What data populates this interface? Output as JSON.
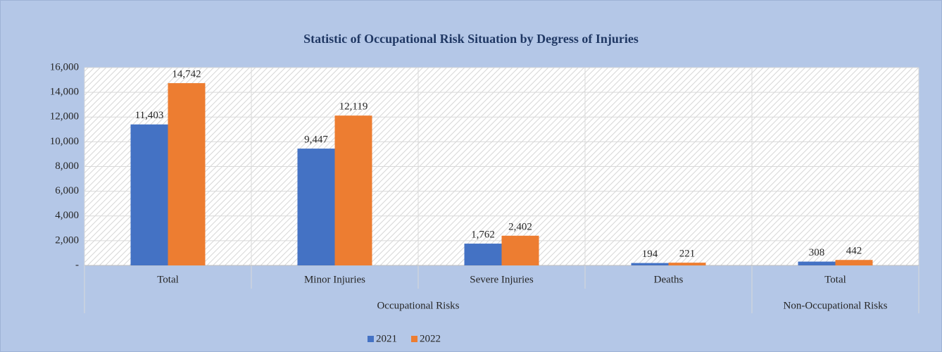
{
  "chart_data": {
    "type": "bar",
    "title": "Statistic of Occupational Risk Situation by Degress of Injuries",
    "categories": [
      "Total",
      "Minor Injuries",
      "Severe Injuries",
      "Deaths",
      "Total"
    ],
    "category_groups": [
      {
        "label": "Occupational Risks",
        "span": 4
      },
      {
        "label": "Non-Occupational Risks",
        "span": 1
      }
    ],
    "series": [
      {
        "name": "2021",
        "color": "#4472c4",
        "values": [
          11403,
          9447,
          1762,
          194,
          308
        ],
        "value_labels": [
          "11,403",
          "9,447",
          "1,762",
          "194",
          "308"
        ]
      },
      {
        "name": "2022",
        "color": "#ed7d31",
        "values": [
          14742,
          12119,
          2402,
          221,
          442
        ],
        "value_labels": [
          "14,742",
          "12,119",
          "2,402",
          "221",
          "442"
        ]
      }
    ],
    "ylim": [
      0,
      16000
    ],
    "yticks": [
      {
        "value": 0,
        "label": "-"
      },
      {
        "value": 2000,
        "label": "2,000"
      },
      {
        "value": 4000,
        "label": "4,000"
      },
      {
        "value": 6000,
        "label": "6,000"
      },
      {
        "value": 8000,
        "label": "8,000"
      },
      {
        "value": 10000,
        "label": "10,000"
      },
      {
        "value": 12000,
        "label": "12,000"
      },
      {
        "value": 14000,
        "label": "14,000"
      },
      {
        "value": 16000,
        "label": "16,000"
      }
    ],
    "grid": true,
    "legend": "bottom"
  }
}
